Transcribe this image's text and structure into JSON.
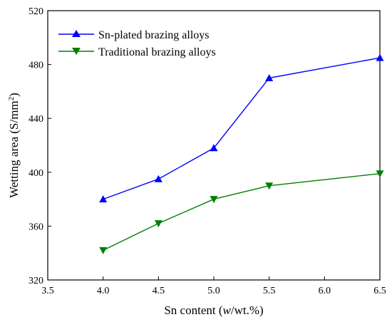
{
  "chart_data": {
    "type": "line",
    "x": [
      4.0,
      4.5,
      5.0,
      5.5,
      6.5
    ],
    "series": [
      {
        "name": "Sn-plated brazing alloys",
        "values": [
          380,
          395,
          418,
          470,
          485
        ],
        "color": "#0000ff",
        "marker": "triangle-up"
      },
      {
        "name": "Traditional brazing alloys",
        "values": [
          342,
          362,
          380,
          390,
          399
        ],
        "color": "#008000",
        "marker": "triangle-down"
      }
    ],
    "xlabel": {
      "pre": "Sn content (",
      "italic": "w",
      "post": "/wt.%)"
    },
    "ylabel": {
      "pre": "Wetting area (S/mm",
      "sup": "2",
      "post": ")"
    },
    "xlim": [
      3.5,
      6.5
    ],
    "ylim": [
      320,
      520
    ],
    "xticks": [
      "3.5",
      "4.0",
      "4.5",
      "5.0",
      "5.5",
      "6.0",
      "6.5"
    ],
    "yticks": [
      "320",
      "360",
      "400",
      "440",
      "480",
      "520"
    ],
    "legend_position": "top-left",
    "grid": false
  }
}
